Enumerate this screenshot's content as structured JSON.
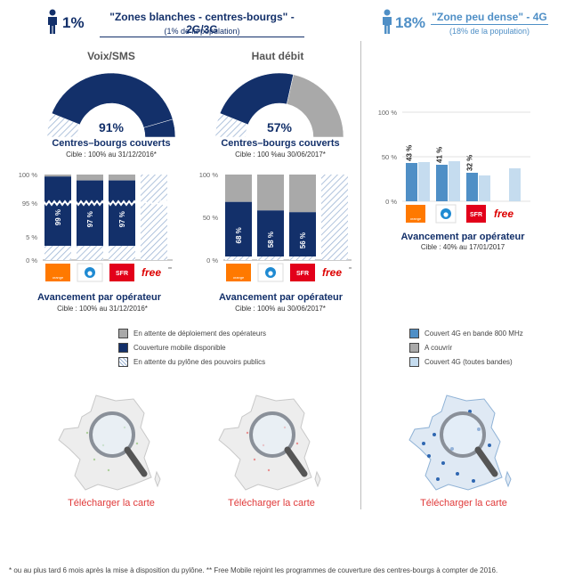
{
  "header_left": {
    "percent": "1%",
    "title": "\"Zones blanches - centres-bourgs\" - 2G/3G",
    "subtitle": "(1% de la population)"
  },
  "header_right": {
    "percent": "18%",
    "title": "\"Zone peu dense\" - 4G",
    "subtitle": "(18% de la population)"
  },
  "colors": {
    "navy": "#13306a",
    "grey": "#a9a9a9",
    "light_blue": "#c5dcef",
    "mid_blue": "#4f8fc6",
    "link_red": "#e03a3a"
  },
  "chart_data": [
    {
      "type": "donut",
      "id": "voix-sms-donut",
      "title": "Voix/SMS",
      "value": 91,
      "label": "91%",
      "caption": "Centres–bourgs couverts",
      "target": "Cible : 100% au 31/12/2016*"
    },
    {
      "type": "donut",
      "id": "haut-debit-donut",
      "title": "Haut débit",
      "value": 57,
      "label": "57%",
      "caption": "Centres–bourgs couverts",
      "target": "Cible : 100 %au 30/06/2017*"
    },
    {
      "type": "bar",
      "id": "voix-sms-operators",
      "stacked": true,
      "broken_axis": true,
      "categories": [
        "orange",
        "bouygues",
        "SFR",
        "free**"
      ],
      "y_ticks": [
        "100 %",
        "95 %",
        "5 %",
        "0 %"
      ],
      "values": [
        99,
        97,
        97,
        null
      ],
      "value_labels": [
        "99 %",
        "97 %",
        "97 %",
        ""
      ],
      "caption": "Avancement par opérateur",
      "target": "Cible : 100% au 31/12/2016*"
    },
    {
      "type": "bar",
      "id": "haut-debit-operators",
      "stacked": true,
      "categories": [
        "orange",
        "bouygues",
        "SFR",
        "free**"
      ],
      "y_ticks": [
        "100 %",
        "50 %",
        "0 %"
      ],
      "values": [
        68,
        58,
        56,
        null
      ],
      "value_labels": [
        "68 %",
        "58 %",
        "56 %",
        ""
      ],
      "caption": "Avancement par opérateur",
      "target": "Cible : 100% au 30/06/2017*"
    },
    {
      "type": "bar",
      "id": "4g-operators",
      "categories": [
        "orange",
        "bouygues",
        "SFR",
        "free"
      ],
      "y_ticks": [
        "100 %",
        "50 %",
        "0 %"
      ],
      "series": [
        {
          "name": "Couvert 4G en bande 800 MHz",
          "values": [
            43,
            41,
            32,
            0
          ]
        },
        {
          "name": "Couvert 4G (toutes bandes)",
          "values": [
            44,
            45,
            29,
            37
          ]
        }
      ],
      "value_labels": [
        "43 %",
        "41 %",
        "32 %",
        ""
      ],
      "caption": "Avancement par opérateur",
      "target": "Cible : 40% au 17/01/2017"
    }
  ],
  "legend_left": [
    "En attente de déploiement des opérateurs",
    "Couverture mobile disponible",
    "En attente du pylône des pouvoirs publics"
  ],
  "legend_right": [
    "Couvert 4G en bande 800 MHz",
    "A couvrir",
    "Couvert 4G (toutes bandes)"
  ],
  "operators": {
    "orange": "orange",
    "sfr": "SFR",
    "free": "free",
    "free_mark": "**"
  },
  "download_label": "Télécharger la carte",
  "footnote": "* ou au plus tard 6 mois après la mise à disposition du pylône.    ** Free Mobile rejoint les programmes de couverture des centres-bourgs à compter de 2016."
}
